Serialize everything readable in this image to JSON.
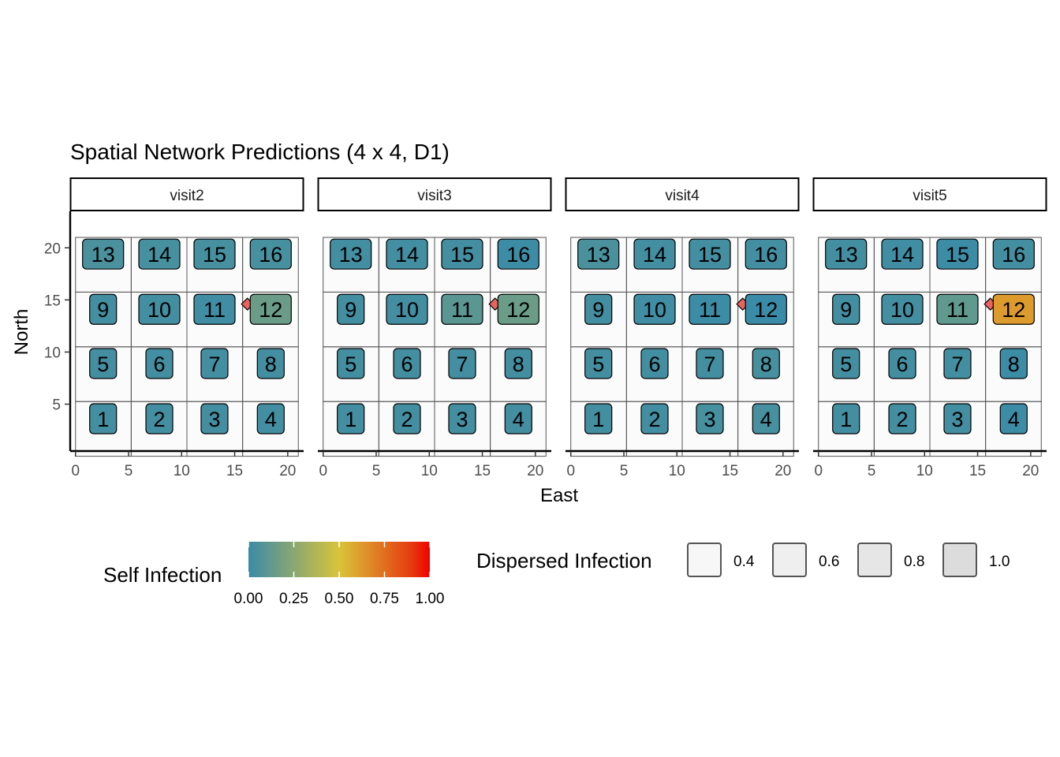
{
  "chart_data": {
    "type": "heatmap",
    "title": "Spatial Network Predictions (4 x 4, D1)",
    "xlabel": "East",
    "ylabel": "North",
    "xlim": [
      -0.5,
      21.5
    ],
    "ylim": [
      0.5,
      23.5
    ],
    "x_ticks": [
      0,
      5,
      10,
      15,
      20
    ],
    "y_ticks": [
      5,
      10,
      15,
      20
    ],
    "grid": false,
    "plot_grid": {
      "cell_size": 5.25,
      "origin": [
        0,
        0
      ],
      "rows": 4,
      "cols": 4
    },
    "cell_values": {
      "1": 0.85,
      "2": 0.85,
      "3": 0.85,
      "4": 0.85,
      "5": 0.85,
      "6": 0.85,
      "7": 0.85,
      "8": 0.85,
      "9": 0.85,
      "10": 0.85,
      "11": 0.85,
      "12": 0.85,
      "13": 0.85,
      "14": 0.85,
      "15": 0.85,
      "16": 0.85
    },
    "source_node": {
      "label": "12",
      "x": 16.2,
      "y": 14.6,
      "color": "#e8645f"
    },
    "panels": [
      {
        "strip": "visit2",
        "nodes": [
          {
            "label": "1",
            "x": 2.6,
            "y": 3.6,
            "self": 0.03
          },
          {
            "label": "2",
            "x": 7.9,
            "y": 3.6,
            "self": 0.03
          },
          {
            "label": "3",
            "x": 13.1,
            "y": 3.6,
            "self": 0.03
          },
          {
            "label": "4",
            "x": 18.4,
            "y": 3.6,
            "self": 0.03
          },
          {
            "label": "5",
            "x": 2.6,
            "y": 8.9,
            "self": 0.03
          },
          {
            "label": "6",
            "x": 7.9,
            "y": 8.9,
            "self": 0.03
          },
          {
            "label": "7",
            "x": 13.1,
            "y": 8.9,
            "self": 0.03
          },
          {
            "label": "8",
            "x": 18.4,
            "y": 8.9,
            "self": 0.03
          },
          {
            "label": "9",
            "x": 2.6,
            "y": 14.1,
            "self": 0.03
          },
          {
            "label": "10",
            "x": 7.9,
            "y": 14.1,
            "self": 0.03
          },
          {
            "label": "11",
            "x": 13.1,
            "y": 14.1,
            "self": 0.02
          },
          {
            "label": "12",
            "x": 18.4,
            "y": 14.1,
            "self": 0.15
          },
          {
            "label": "13",
            "x": 2.6,
            "y": 19.4,
            "self": 0.05
          },
          {
            "label": "14",
            "x": 7.9,
            "y": 19.4,
            "self": 0.04
          },
          {
            "label": "15",
            "x": 13.1,
            "y": 19.4,
            "self": 0.04
          },
          {
            "label": "16",
            "x": 18.4,
            "y": 19.4,
            "self": 0.04
          }
        ]
      },
      {
        "strip": "visit3",
        "nodes": [
          {
            "label": "1",
            "x": 2.6,
            "y": 3.6,
            "self": 0.03
          },
          {
            "label": "2",
            "x": 7.9,
            "y": 3.6,
            "self": 0.03
          },
          {
            "label": "3",
            "x": 13.1,
            "y": 3.6,
            "self": 0.03
          },
          {
            "label": "4",
            "x": 18.4,
            "y": 3.6,
            "self": 0.03
          },
          {
            "label": "5",
            "x": 2.6,
            "y": 8.9,
            "self": 0.03
          },
          {
            "label": "6",
            "x": 7.9,
            "y": 8.9,
            "self": 0.03
          },
          {
            "label": "7",
            "x": 13.1,
            "y": 8.9,
            "self": 0.03
          },
          {
            "label": "8",
            "x": 18.4,
            "y": 8.9,
            "self": 0.03
          },
          {
            "label": "9",
            "x": 2.6,
            "y": 14.1,
            "self": 0.03
          },
          {
            "label": "10",
            "x": 7.9,
            "y": 14.1,
            "self": 0.03
          },
          {
            "label": "11",
            "x": 13.1,
            "y": 14.1,
            "self": 0.1
          },
          {
            "label": "12",
            "x": 18.4,
            "y": 14.1,
            "self": 0.15
          },
          {
            "label": "13",
            "x": 2.6,
            "y": 19.4,
            "self": 0.03
          },
          {
            "label": "14",
            "x": 7.9,
            "y": 19.4,
            "self": 0.03
          },
          {
            "label": "15",
            "x": 13.1,
            "y": 19.4,
            "self": 0.03
          },
          {
            "label": "16",
            "x": 18.4,
            "y": 19.4,
            "self": 0.01
          }
        ]
      },
      {
        "strip": "visit4",
        "nodes": [
          {
            "label": "1",
            "x": 2.6,
            "y": 3.6,
            "self": 0.03
          },
          {
            "label": "2",
            "x": 7.9,
            "y": 3.6,
            "self": 0.03
          },
          {
            "label": "3",
            "x": 13.1,
            "y": 3.6,
            "self": 0.04
          },
          {
            "label": "4",
            "x": 18.4,
            "y": 3.6,
            "self": 0.04
          },
          {
            "label": "5",
            "x": 2.6,
            "y": 8.9,
            "self": 0.03
          },
          {
            "label": "6",
            "x": 7.9,
            "y": 8.9,
            "self": 0.03
          },
          {
            "label": "7",
            "x": 13.1,
            "y": 8.9,
            "self": 0.03
          },
          {
            "label": "8",
            "x": 18.4,
            "y": 8.9,
            "self": 0.04
          },
          {
            "label": "9",
            "x": 2.6,
            "y": 14.1,
            "self": 0.03
          },
          {
            "label": "10",
            "x": 7.9,
            "y": 14.1,
            "self": 0.02
          },
          {
            "label": "11",
            "x": 13.1,
            "y": 14.1,
            "self": 0.01
          },
          {
            "label": "12",
            "x": 18.4,
            "y": 14.1,
            "self": 0.0
          },
          {
            "label": "13",
            "x": 2.6,
            "y": 19.4,
            "self": 0.05
          },
          {
            "label": "14",
            "x": 7.9,
            "y": 19.4,
            "self": 0.03
          },
          {
            "label": "15",
            "x": 13.1,
            "y": 19.4,
            "self": 0.03
          },
          {
            "label": "16",
            "x": 18.4,
            "y": 19.4,
            "self": 0.03
          }
        ]
      },
      {
        "strip": "visit5",
        "nodes": [
          {
            "label": "1",
            "x": 2.6,
            "y": 3.6,
            "self": 0.03
          },
          {
            "label": "2",
            "x": 7.9,
            "y": 3.6,
            "self": 0.03
          },
          {
            "label": "3",
            "x": 13.1,
            "y": 3.6,
            "self": 0.03
          },
          {
            "label": "4",
            "x": 18.4,
            "y": 3.6,
            "self": 0.01
          },
          {
            "label": "5",
            "x": 2.6,
            "y": 8.9,
            "self": 0.03
          },
          {
            "label": "6",
            "x": 7.9,
            "y": 8.9,
            "self": 0.03
          },
          {
            "label": "7",
            "x": 13.1,
            "y": 8.9,
            "self": 0.03
          },
          {
            "label": "8",
            "x": 18.4,
            "y": 8.9,
            "self": 0.01
          },
          {
            "label": "9",
            "x": 2.6,
            "y": 14.1,
            "self": 0.03
          },
          {
            "label": "10",
            "x": 7.9,
            "y": 14.1,
            "self": 0.03
          },
          {
            "label": "11",
            "x": 13.1,
            "y": 14.1,
            "self": 0.12
          },
          {
            "label": "12",
            "x": 18.4,
            "y": 14.1,
            "self": 0.62
          },
          {
            "label": "13",
            "x": 2.6,
            "y": 19.4,
            "self": 0.03
          },
          {
            "label": "14",
            "x": 7.9,
            "y": 19.4,
            "self": 0.02
          },
          {
            "label": "15",
            "x": 13.1,
            "y": 19.4,
            "self": 0.01
          },
          {
            "label": "16",
            "x": 18.4,
            "y": 19.4,
            "self": 0.03
          }
        ]
      }
    ],
    "legend": {
      "position": "bottom",
      "self_title": "Self Infection",
      "self_breaks": [
        "0.00",
        "0.25",
        "0.50",
        "0.75",
        "1.00"
      ],
      "self_colors": [
        "#3a8ba8",
        "#d9c43a",
        "#e53b0f",
        "#f20000"
      ],
      "dispersed_title": "Dispersed Infection",
      "dispersed_breaks": [
        "0.4",
        "0.6",
        "0.8",
        "1.0"
      ],
      "dispersed_fills": [
        "#f7f7f7",
        "#efefef",
        "#e6e6e6",
        "#dcdcdc"
      ]
    }
  }
}
